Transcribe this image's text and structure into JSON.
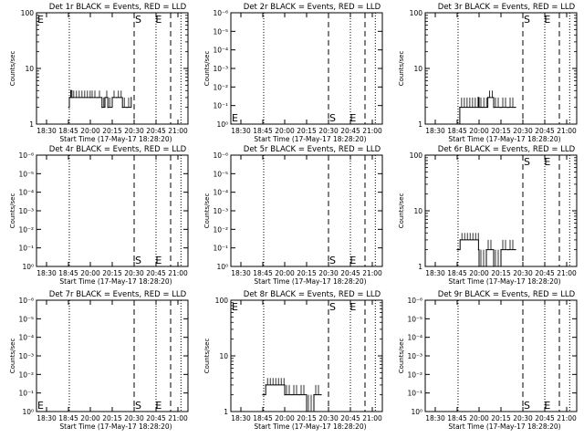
{
  "chart_data": [
    {
      "type": "line",
      "title": "Det 1r BLACK = Events, RED = LLD",
      "xlabel": "Start Time (17-May-17 18:28:20)",
      "ylabel": "Counts/sec",
      "yscale": "log",
      "ylim": [
        1,
        100
      ],
      "yticks": [
        "1",
        "10",
        "100"
      ],
      "xticks": [
        "18:30",
        "18:45",
        "20:00",
        "20:15",
        "20:30",
        "20:45",
        "21:00"
      ],
      "xrange": [
        "18:30",
        "21:10"
      ],
      "markers": [
        {
          "label": "E",
          "time": "18:30"
        },
        {
          "label": "S",
          "time": "20:30"
        },
        {
          "label": "E",
          "time": "20:44"
        }
      ],
      "dotted_times": [
        "18:48",
        "20:45",
        "21:03"
      ],
      "dashed_times": [
        "20:30",
        "20:55"
      ],
      "series": [
        {
          "color": "#000000",
          "segments": [
            {
              "x": [
                "18:46",
                "18:48",
                "18:50",
                "18:53",
                "18:57",
                "20:00",
                "20:05",
                "20:08",
                "20:10",
                "20:12",
                "20:15",
                "20:18",
                "20:22",
                "20:25",
                "20:28"
              ],
              "y": [
                2,
                3,
                3,
                4,
                3,
                3,
                3,
                2,
                3,
                2,
                3,
                3,
                2,
                2,
                3
              ]
            }
          ]
        }
      ]
    },
    {
      "type": "line",
      "title": "Det 2r BLACK = Events, RED = LLD",
      "xlabel": "Start Time (17-May-17 18:28:20)",
      "ylabel": "Counts/sec",
      "yscale": "log",
      "ylim": [
        1,
        1000000
      ],
      "yticks": [
        "10⁰",
        "10⁻¹",
        "10⁻²",
        "10⁻³",
        "10⁻⁴",
        "10⁻⁵",
        "10⁻⁶"
      ],
      "xticks": [
        "18:30",
        "18:45",
        "20:00",
        "20:15",
        "20:30",
        "20:45",
        "21:00"
      ],
      "xrange": [
        "18:30",
        "21:10"
      ],
      "markers": [
        {
          "label": "E",
          "time": "18:30"
        },
        {
          "label": "S",
          "time": "20:30"
        },
        {
          "label": "E",
          "time": "20:44"
        }
      ],
      "dotted_times": [
        "18:48",
        "20:45",
        "21:03"
      ],
      "dashed_times": [
        "20:30",
        "20:55"
      ],
      "series": []
    },
    {
      "type": "line",
      "title": "Det 3r BLACK = Events, RED = LLD",
      "xlabel": "Start Time (17-May-17 18:28:20)",
      "ylabel": "Counts/sec",
      "yscale": "log",
      "ylim": [
        1,
        100
      ],
      "yticks": [
        "1",
        "10",
        "100"
      ],
      "xticks": [
        "18:30",
        "18:45",
        "20:00",
        "20:15",
        "20:30",
        "20:45",
        "21:00"
      ],
      "xrange": [
        "18:30",
        "21:10"
      ],
      "markers": [
        {
          "label": "S",
          "time": "20:30"
        },
        {
          "label": "E",
          "time": "20:44"
        }
      ],
      "dotted_times": [
        "18:48",
        "20:45",
        "21:03"
      ],
      "dashed_times": [
        "20:30",
        "20:55"
      ],
      "series": [
        {
          "color": "#000000",
          "segments": [
            {
              "x": [
                "18:50",
                "18:54",
                "19:57",
                "20:00",
                "20:02",
                "20:06",
                "20:10",
                "20:15",
                "20:20",
                "20:25"
              ],
              "y": [
                1,
                2,
                3,
                2,
                2,
                3,
                2,
                2,
                2,
                2
              ]
            }
          ]
        }
      ]
    },
    {
      "type": "line",
      "title": "Det 4r BLACK = Events, RED = LLD",
      "xlabel": "Start Time (17-May-17 18:28:20)",
      "ylabel": "Counts/sec",
      "yscale": "log",
      "ylim": [
        1,
        1000000
      ],
      "yticks": [
        "10⁰",
        "10⁻¹",
        "10⁻²",
        "10⁻³",
        "10⁻⁴",
        "10⁻⁵",
        "10⁻⁶"
      ],
      "xticks": [
        "18:30",
        "18:45",
        "20:00",
        "20:15",
        "20:30",
        "20:45",
        "21:00"
      ],
      "xrange": [
        "18:30",
        "21:10"
      ],
      "markers": [
        {
          "label": "S",
          "time": "20:30"
        },
        {
          "label": "E",
          "time": "20:44"
        }
      ],
      "dotted_times": [
        "18:48",
        "20:45",
        "21:03"
      ],
      "dashed_times": [
        "20:30",
        "20:55"
      ],
      "series": []
    },
    {
      "type": "line",
      "title": "Det 5r BLACK = Events, RED = LLD",
      "xlabel": "Start Time (17-May-17 18:28:20)",
      "ylabel": "Counts/sec",
      "yscale": "log",
      "ylim": [
        1,
        1000000
      ],
      "yticks": [
        "10⁰",
        "10⁻¹",
        "10⁻²",
        "10⁻³",
        "10⁻⁴",
        "10⁻⁵",
        "10⁻⁶"
      ],
      "xticks": [
        "18:30",
        "18:45",
        "20:00",
        "20:15",
        "20:30",
        "20:45",
        "21:00"
      ],
      "xrange": [
        "18:30",
        "21:10"
      ],
      "markers": [
        {
          "label": "S",
          "time": "20:30"
        },
        {
          "label": "E",
          "time": "20:44"
        }
      ],
      "dotted_times": [
        "18:48",
        "20:45",
        "21:03"
      ],
      "dashed_times": [
        "20:30",
        "20:55"
      ],
      "series": []
    },
    {
      "type": "line",
      "title": "Det 6r BLACK = Events, RED = LLD",
      "xlabel": "Start Time (17-May-17 18:28:20)",
      "ylabel": "Counts/sec",
      "yscale": "log",
      "ylim": [
        1,
        100
      ],
      "yticks": [
        "1",
        "10",
        "100"
      ],
      "xticks": [
        "18:30",
        "18:45",
        "20:00",
        "20:15",
        "20:30",
        "20:45",
        "21:00"
      ],
      "xrange": [
        "18:30",
        "21:10"
      ],
      "markers": [
        {
          "label": "S",
          "time": "20:30"
        },
        {
          "label": "E",
          "time": "20:44"
        }
      ],
      "dotted_times": [
        "18:48",
        "20:45",
        "21:03"
      ],
      "dashed_times": [
        "20:30",
        "20:55"
      ],
      "series": [
        {
          "color": "#000000",
          "segments": [
            {
              "x": [
                "18:45",
                "18:50",
                "18:55",
                "19:58",
                "20:00",
                "20:05",
                "20:10",
                "20:15",
                "20:20",
                "20:25"
              ],
              "y": [
                2,
                2,
                3,
                2,
                1,
                2,
                1,
                2,
                2,
                2
              ]
            }
          ]
        }
      ]
    },
    {
      "type": "line",
      "title": "Det 7r BLACK = Events, RED = LLD",
      "xlabel": "Start Time (17-May-17 18:28:20)",
      "ylabel": "Counts/sec",
      "yscale": "log",
      "ylim": [
        1,
        1000000
      ],
      "yticks": [
        "10⁰",
        "10⁻¹",
        "10⁻²",
        "10⁻³",
        "10⁻⁴",
        "10⁻⁵",
        "10⁻⁶"
      ],
      "xticks": [
        "18:30",
        "18:45",
        "20:00",
        "20:15",
        "20:30",
        "20:45",
        "21:00"
      ],
      "xrange": [
        "18:30",
        "21:10"
      ],
      "markers": [
        {
          "label": "E",
          "time": "18:30"
        },
        {
          "label": "S",
          "time": "20:30"
        },
        {
          "label": "E",
          "time": "20:44"
        }
      ],
      "dotted_times": [
        "18:48",
        "20:45",
        "21:03"
      ],
      "dashed_times": [
        "20:30",
        "20:55"
      ],
      "series": []
    },
    {
      "type": "line",
      "title": "Det 8r BLACK = Events, RED = LLD",
      "xlabel": "Start Time (17-May-17 18:28:20)",
      "ylabel": "Counts/sec",
      "yscale": "log",
      "ylim": [
        1,
        100
      ],
      "yticks": [
        "1",
        "10",
        "100"
      ],
      "xticks": [
        "18:30",
        "18:45",
        "20:00",
        "20:15",
        "20:30",
        "20:45",
        "21:00"
      ],
      "xrange": [
        "18:30",
        "21:10"
      ],
      "markers": [
        {
          "label": "E",
          "time": "18:30"
        },
        {
          "label": "S",
          "time": "20:30"
        },
        {
          "label": "E",
          "time": "20:44"
        }
      ],
      "dotted_times": [
        "18:48",
        "20:45",
        "21:03"
      ],
      "dashed_times": [
        "20:30",
        "20:55"
      ],
      "series": [
        {
          "color": "#000000",
          "segments": [
            {
              "x": [
                "18:45",
                "18:50",
                "18:55",
                "19:58",
                "20:00",
                "20:05",
                "20:10",
                "20:15",
                "20:20",
                "20:25"
              ],
              "y": [
                2,
                2,
                3,
                3,
                2,
                2,
                2,
                1,
                2,
                2
              ]
            }
          ]
        }
      ]
    },
    {
      "type": "line",
      "title": "Det 9r BLACK = Events, RED = LLD",
      "xlabel": "Start Time (17-May-17 18:28:20)",
      "ylabel": "Counts/sec",
      "yscale": "log",
      "ylim": [
        1,
        1000000
      ],
      "yticks": [
        "10⁰",
        "10⁻¹",
        "10⁻²",
        "10⁻³",
        "10⁻⁴",
        "10⁻⁵",
        "10⁻⁶"
      ],
      "xticks": [
        "18:30",
        "18:45",
        "20:00",
        "20:15",
        "20:30",
        "20:45",
        "21:00"
      ],
      "xrange": [
        "18:30",
        "21:10"
      ],
      "markers": [
        {
          "label": "S",
          "time": "20:30"
        },
        {
          "label": "E",
          "time": "20:44"
        }
      ],
      "dotted_times": [
        "18:48",
        "20:45",
        "21:03"
      ],
      "dashed_times": [
        "20:30",
        "20:55"
      ],
      "series": []
    }
  ]
}
